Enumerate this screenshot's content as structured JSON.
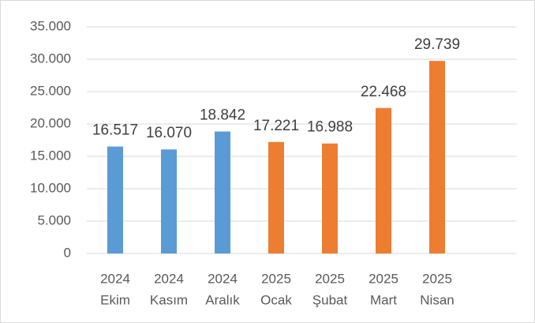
{
  "chart_data": {
    "type": "bar",
    "categories": [
      [
        "2024",
        "Ekim"
      ],
      [
        "2024",
        "Kasım"
      ],
      [
        "2024",
        "Aralık"
      ],
      [
        "2025",
        "Ocak"
      ],
      [
        "2025",
        "Şubat"
      ],
      [
        "2025",
        "Mart"
      ],
      [
        "2025",
        "Nisan"
      ]
    ],
    "values": [
      16517,
      16070,
      18842,
      17221,
      16988,
      22468,
      29739
    ],
    "value_labels": [
      "16.517",
      "16.070",
      "18.842",
      "17.221",
      "16.988",
      "22.468",
      "29.739"
    ],
    "colors": [
      "#5b9bd5",
      "#5b9bd5",
      "#5b9bd5",
      "#ed7d31",
      "#ed7d31",
      "#ed7d31",
      "#ed7d31"
    ],
    "ylim": [
      0,
      35000
    ],
    "yticks": [
      0,
      {
        "value": 5000,
        "label": "5.000"
      },
      {
        "value": 10000,
        "label": "10.000"
      },
      {
        "value": 15000,
        "label": "15.000"
      },
      {
        "value": 20000,
        "label": "20.000"
      },
      {
        "value": 25000,
        "label": "25.000"
      },
      {
        "value": 30000,
        "label": "30.000"
      },
      {
        "value": 35000,
        "label": "35.000"
      }
    ],
    "grid": true
  }
}
